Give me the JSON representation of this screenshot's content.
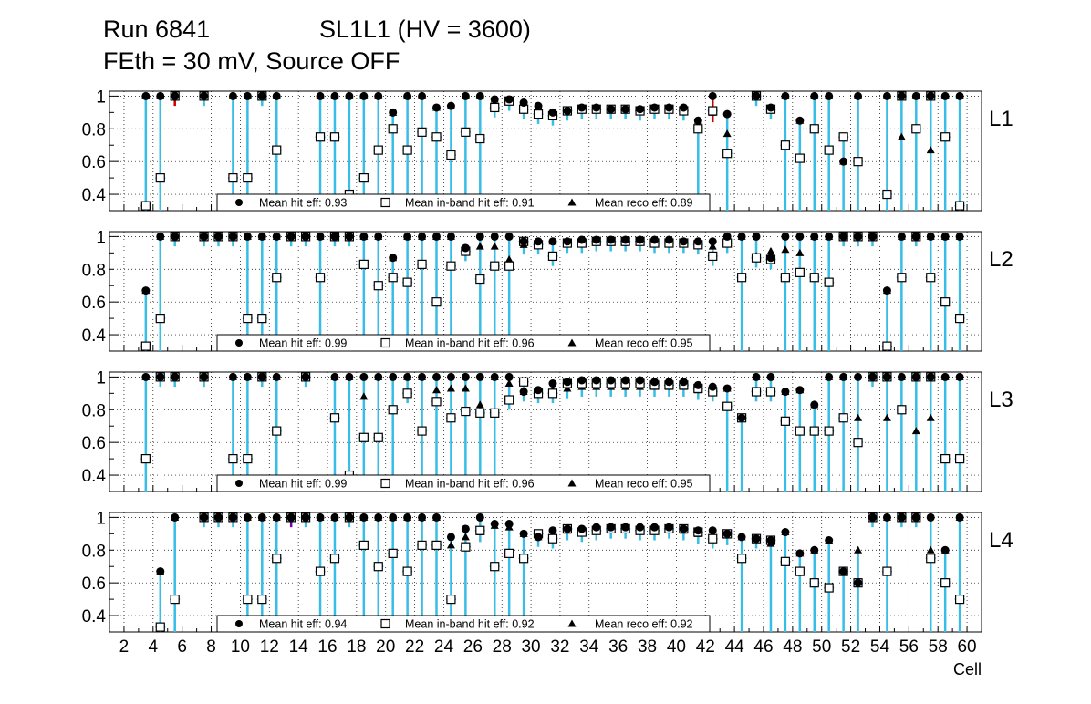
{
  "header": {
    "run": "Run 6841",
    "chamber": "SL1L1 (HV = 3600)",
    "conditions": "FEth = 30 mV, Source OFF"
  },
  "chart_data": {
    "type": "scatter",
    "xlabel": "Cell",
    "ylabel": "",
    "xlim": [
      1,
      61
    ],
    "ylim": [
      0.3,
      1.03
    ],
    "x_ticks": [
      2,
      4,
      6,
      8,
      10,
      12,
      14,
      16,
      18,
      20,
      22,
      24,
      26,
      28,
      30,
      32,
      34,
      36,
      38,
      40,
      42,
      44,
      46,
      48,
      50,
      52,
      54,
      56,
      58,
      60
    ],
    "y_ticks": [
      0.4,
      0.6,
      0.8,
      1
    ],
    "grid": true,
    "legend_position": "bottom-center",
    "colors": {
      "hit": "#000000",
      "inband": "#ffffff",
      "reco": "#000000",
      "error_bar": "#37bde6",
      "error_bar_alt_red": "#cc0000",
      "error_bar_alt_purple": "#7a00b8"
    },
    "series_labels": {
      "hit": "Mean hit  eff",
      "inband": "Mean in-band hit eff",
      "reco": "Mean reco eff"
    },
    "layers": [
      {
        "name": "L1",
        "legend_values": {
          "hit": "0.93",
          "inband": "0.91",
          "reco": "0.89"
        },
        "cells": [
          3,
          4,
          5,
          7,
          9,
          10,
          11,
          12,
          15,
          16,
          17,
          18,
          19,
          20,
          21,
          22,
          23,
          24,
          25,
          26,
          27,
          28,
          29,
          30,
          31,
          32,
          33,
          34,
          35,
          36,
          37,
          38,
          39,
          40,
          41,
          42,
          43,
          45,
          46,
          47,
          48,
          49,
          50,
          51,
          52,
          54,
          55,
          56,
          57,
          58,
          59
        ],
        "hit": [
          1,
          1,
          1,
          1,
          1,
          1,
          1,
          1,
          1,
          1,
          1,
          1,
          1,
          0.9,
          1,
          1,
          0.93,
          0.94,
          1,
          1,
          0.98,
          0.98,
          0.96,
          0.94,
          0.9,
          0.91,
          0.93,
          0.93,
          0.92,
          0.92,
          0.92,
          0.93,
          0.93,
          0.93,
          0.85,
          1,
          0.89,
          1,
          0.93,
          1,
          0.85,
          1,
          1,
          0.6,
          1,
          1,
          1,
          1,
          1,
          1,
          1
        ],
        "inband": [
          0.33,
          0.5,
          1,
          1,
          0.5,
          0.5,
          1,
          0.67,
          0.75,
          0.75,
          0.4,
          0.5,
          0.67,
          0.8,
          0.67,
          0.78,
          0.75,
          0.64,
          0.78,
          0.74,
          0.93,
          0.97,
          0.92,
          0.89,
          0.88,
          0.91,
          0.92,
          0.92,
          0.92,
          0.92,
          0.91,
          0.92,
          0.92,
          0.91,
          0.8,
          0.91,
          0.65,
          1,
          0.92,
          0.7,
          0.62,
          0.8,
          0.67,
          0.75,
          0.6,
          0.4,
          1,
          0.8,
          1,
          0.75,
          0.33
        ],
        "reco": [
          1,
          1,
          1,
          1,
          1,
          1,
          1,
          1,
          1,
          1,
          1,
          1,
          1,
          0.9,
          1,
          1,
          0.93,
          0.94,
          1,
          1,
          0.98,
          0.98,
          0.96,
          0.94,
          0.9,
          0.91,
          0.93,
          0.93,
          0.92,
          0.92,
          0.92,
          0.93,
          0.93,
          0.93,
          0.85,
          0.9,
          0.77,
          1,
          0.93,
          1,
          0.85,
          1,
          1,
          0.6,
          1,
          1,
          0.75,
          1,
          0.67,
          1,
          1
        ]
      },
      {
        "name": "L2",
        "legend_values": {
          "hit": "0.99",
          "inband": "0.96",
          "reco": "0.95"
        },
        "cells": [
          3,
          4,
          5,
          7,
          8,
          9,
          10,
          11,
          12,
          13,
          14,
          15,
          16,
          17,
          18,
          19,
          20,
          21,
          22,
          23,
          24,
          25,
          26,
          27,
          28,
          29,
          30,
          31,
          32,
          33,
          34,
          35,
          36,
          37,
          38,
          39,
          40,
          41,
          42,
          43,
          44,
          45,
          46,
          47,
          48,
          49,
          50,
          51,
          52,
          53,
          54,
          55,
          56,
          57,
          58,
          59
        ],
        "hit": [
          0.67,
          1,
          1,
          1,
          1,
          1,
          1,
          1,
          1,
          1,
          1,
          1,
          1,
          1,
          1,
          1,
          0.87,
          1,
          1,
          1,
          1,
          0.93,
          1,
          1,
          1,
          0.97,
          0.97,
          0.97,
          0.97,
          0.98,
          0.98,
          0.98,
          0.98,
          0.98,
          0.98,
          0.98,
          0.97,
          0.97,
          0.97,
          1,
          1,
          1,
          0.87,
          1,
          1,
          1,
          1,
          1,
          1,
          1,
          0.67,
          1,
          1,
          1,
          1,
          1
        ],
        "inband": [
          0.33,
          0.5,
          1,
          1,
          1,
          1,
          0.5,
          0.5,
          0.75,
          1,
          1,
          0.75,
          1,
          1,
          0.83,
          0.7,
          0.75,
          0.72,
          0.83,
          0.6,
          0.82,
          0.91,
          0.74,
          0.82,
          0.82,
          0.97,
          0.95,
          0.88,
          0.96,
          0.96,
          0.97,
          0.97,
          0.97,
          0.97,
          0.96,
          0.96,
          0.96,
          0.95,
          0.88,
          0.96,
          0.75,
          0.87,
          0.86,
          0.75,
          0.78,
          0.75,
          0.72,
          1,
          1,
          1,
          0.33,
          0.75,
          1,
          0.75,
          0.6,
          0.5
        ],
        "reco": [
          0.67,
          1,
          1,
          1,
          1,
          1,
          1,
          1,
          1,
          1,
          1,
          1,
          1,
          1,
          1,
          1,
          0.87,
          1,
          1,
          1,
          1,
          0.93,
          0.94,
          0.94,
          0.86,
          0.95,
          0.97,
          0.97,
          0.97,
          0.97,
          0.97,
          0.97,
          0.97,
          0.97,
          0.96,
          0.96,
          0.97,
          0.96,
          0.94,
          0.98,
          1,
          0.88,
          0.91,
          0.92,
          0.9,
          1,
          1,
          1,
          1,
          1,
          0.67,
          1,
          1,
          1,
          1,
          1
        ]
      },
      {
        "name": "L3",
        "legend_values": {
          "hit": "0.99",
          "inband": "0.96",
          "reco": "0.95"
        },
        "cells": [
          3,
          4,
          5,
          7,
          9,
          10,
          11,
          12,
          14,
          16,
          17,
          18,
          19,
          20,
          21,
          22,
          23,
          24,
          25,
          26,
          27,
          28,
          29,
          30,
          31,
          32,
          33,
          34,
          35,
          36,
          37,
          38,
          39,
          40,
          41,
          42,
          43,
          44,
          45,
          46,
          47,
          48,
          49,
          50,
          51,
          52,
          53,
          54,
          55,
          56,
          57,
          58,
          59
        ],
        "hit": [
          1,
          1,
          1,
          1,
          1,
          1,
          1,
          1,
          1,
          1,
          1,
          1,
          1,
          1,
          1,
          1,
          1,
          1,
          1,
          1,
          1,
          1,
          0.91,
          0.92,
          0.96,
          0.97,
          0.98,
          0.98,
          0.98,
          0.98,
          0.98,
          0.97,
          0.97,
          0.97,
          0.95,
          0.94,
          0.93,
          0.75,
          1,
          1,
          0.91,
          0.92,
          0.83,
          1,
          1,
          1,
          1,
          1,
          1,
          1,
          1,
          1,
          1
        ],
        "inband": [
          0.5,
          1,
          1,
          1,
          0.5,
          0.5,
          1,
          0.67,
          1,
          0.75,
          0.4,
          0.63,
          0.63,
          0.8,
          0.9,
          0.67,
          0.85,
          0.75,
          0.79,
          0.78,
          0.78,
          0.86,
          0.97,
          0.9,
          0.9,
          0.96,
          0.96,
          0.96,
          0.96,
          0.96,
          0.96,
          0.95,
          0.95,
          0.95,
          0.93,
          0.91,
          0.82,
          0.75,
          0.91,
          0.91,
          0.73,
          0.67,
          0.67,
          0.67,
          0.75,
          0.6,
          1,
          1,
          0.8,
          1,
          1,
          0.5,
          0.5
        ],
        "reco": [
          1,
          1,
          1,
          1,
          1,
          1,
          1,
          1,
          1,
          1,
          1,
          0.88,
          1,
          0.8,
          1,
          1,
          0.92,
          0.93,
          0.93,
          0.83,
          1,
          0.96,
          0.91,
          0.9,
          0.92,
          0.93,
          0.94,
          0.94,
          0.94,
          0.94,
          0.94,
          0.94,
          0.94,
          0.94,
          0.92,
          0.92,
          0.93,
          0.75,
          1,
          0.91,
          0.91,
          0.92,
          0.83,
          1,
          1,
          0.75,
          1,
          0.75,
          1,
          0.67,
          0.75,
          1,
          1
        ]
      },
      {
        "name": "L4",
        "legend_values": {
          "hit": "0.94",
          "inband": "0.92",
          "reco": "0.92"
        },
        "cells": [
          4,
          5,
          7,
          8,
          9,
          10,
          11,
          12,
          13,
          14,
          15,
          16,
          17,
          18,
          19,
          20,
          21,
          22,
          23,
          24,
          25,
          26,
          27,
          28,
          29,
          30,
          31,
          32,
          33,
          34,
          35,
          36,
          37,
          38,
          39,
          40,
          41,
          42,
          43,
          44,
          45,
          46,
          47,
          48,
          49,
          50,
          51,
          52,
          53,
          54,
          55,
          56,
          57,
          58,
          59
        ],
        "hit": [
          0.67,
          1,
          1,
          1,
          1,
          1,
          1,
          1,
          1,
          1,
          1,
          1,
          1,
          1,
          1,
          1,
          1,
          1,
          1,
          0.88,
          0.93,
          1,
          0.96,
          0.96,
          0.9,
          0.88,
          0.92,
          0.93,
          0.93,
          0.94,
          0.94,
          0.94,
          0.94,
          0.94,
          0.94,
          0.93,
          0.92,
          0.92,
          0.9,
          0.88,
          0.87,
          0.86,
          0.91,
          0.78,
          0.8,
          0.86,
          0.67,
          0.6,
          1,
          1,
          1,
          1,
          1,
          0.8,
          1
        ],
        "inband": [
          0.33,
          0.5,
          1,
          1,
          1,
          0.5,
          0.5,
          0.75,
          1,
          1,
          0.67,
          0.75,
          1,
          0.83,
          0.7,
          0.78,
          0.67,
          0.83,
          0.83,
          0.5,
          0.82,
          0.92,
          0.7,
          0.78,
          0.75,
          0.9,
          0.87,
          0.93,
          0.91,
          0.92,
          0.93,
          0.93,
          0.92,
          0.92,
          0.93,
          0.93,
          0.91,
          0.87,
          0.9,
          0.75,
          0.87,
          0.86,
          0.73,
          0.67,
          0.6,
          0.57,
          0.67,
          0.6,
          1,
          0.67,
          1,
          1,
          0.75,
          0.6,
          0.5
        ],
        "reco": [
          0.67,
          1,
          1,
          1,
          1,
          1,
          1,
          1,
          1,
          1,
          1,
          1,
          1,
          1,
          1,
          1,
          1,
          1,
          1,
          0.83,
          0.88,
          0.91,
          0.95,
          0.94,
          0.9,
          0.88,
          0.9,
          0.92,
          0.93,
          0.94,
          0.94,
          0.93,
          0.93,
          0.93,
          0.93,
          0.92,
          0.9,
          0.9,
          0.89,
          0.88,
          0.87,
          0.84,
          0.91,
          0.78,
          0.8,
          0.86,
          0.67,
          0.8,
          1,
          1,
          1,
          1,
          0.8,
          0.8,
          1
        ]
      }
    ]
  }
}
